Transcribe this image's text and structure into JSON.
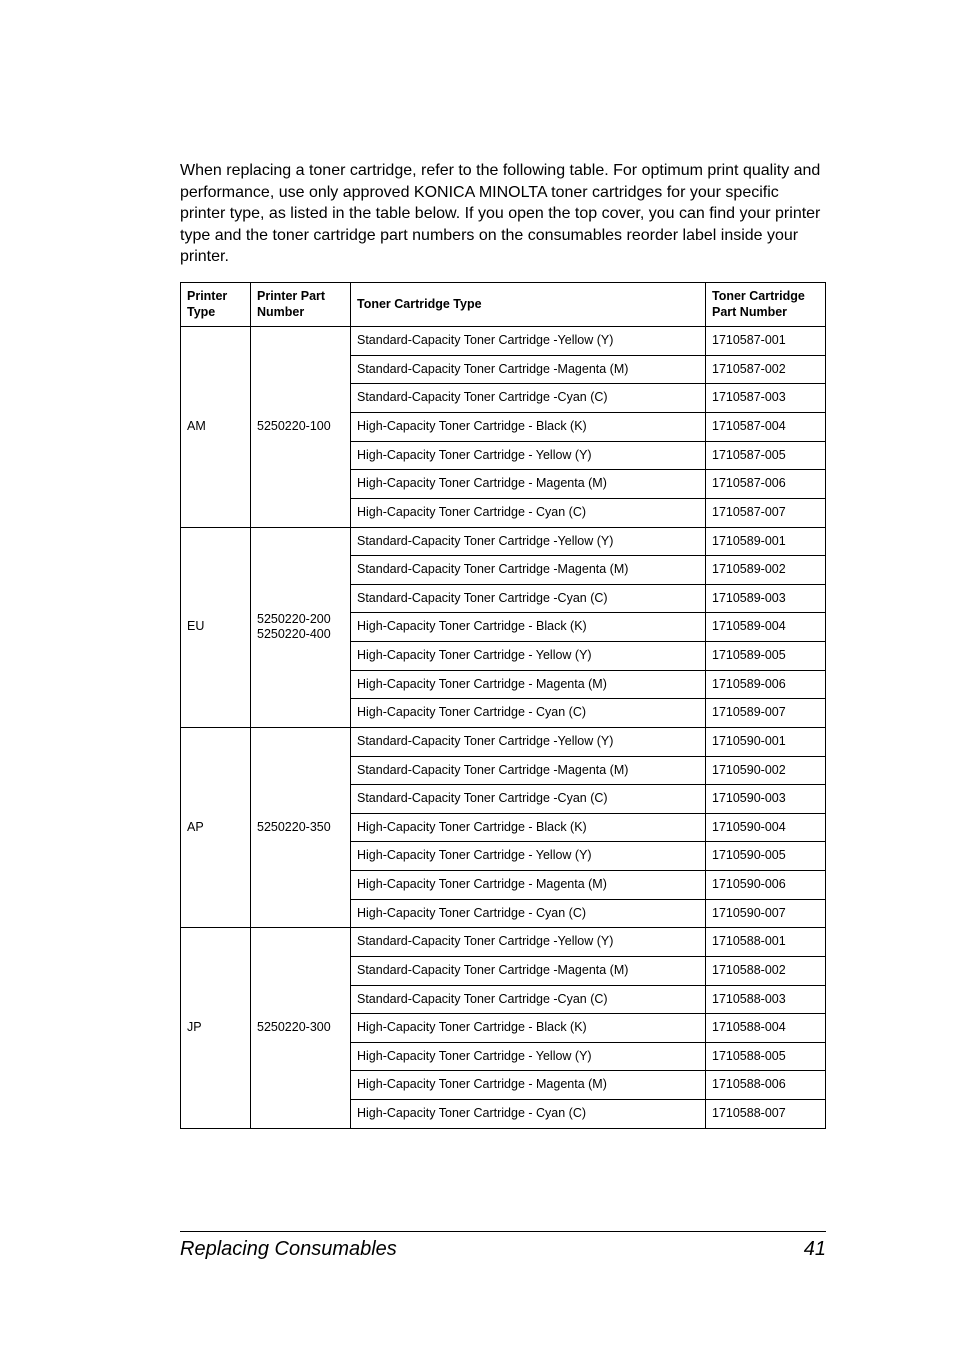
{
  "intro": "When replacing a toner cartridge, refer to the following table. For optimum print quality and performance, use only approved KONICA MINOLTA toner cartridges for your specific printer type, as listed in the table below. If you open the top cover, you can find your printer type and the toner cartridge part numbers on the consumables reorder label inside your printer.",
  "columns": {
    "printer_type": "Printer Type",
    "printer_part": "Printer Part Number",
    "cartridge_type": "Toner Cartridge Type",
    "cartridge_number": "Toner Cartridge Part Number"
  },
  "groups": [
    {
      "printer_type": "AM",
      "printer_part": "5250220-100",
      "rows": [
        {
          "ctype": "Standard-Capacity Toner Cartridge -Yellow (Y)",
          "cnum": "1710587-001"
        },
        {
          "ctype": "Standard-Capacity Toner Cartridge -Magenta (M)",
          "cnum": "1710587-002"
        },
        {
          "ctype": "Standard-Capacity Toner Cartridge -Cyan (C)",
          "cnum": "1710587-003"
        },
        {
          "ctype": "High-Capacity Toner Cartridge - Black (K)",
          "cnum": "1710587-004"
        },
        {
          "ctype": "High-Capacity Toner Cartridge - Yellow (Y)",
          "cnum": "1710587-005"
        },
        {
          "ctype": "High-Capacity Toner Cartridge - Magenta (M)",
          "cnum": "1710587-006"
        },
        {
          "ctype": "High-Capacity Toner Cartridge - Cyan (C)",
          "cnum": "1710587-007"
        }
      ]
    },
    {
      "printer_type": "EU",
      "printer_part": "5250220-200\n5250220-400",
      "rows": [
        {
          "ctype": "Standard-Capacity Toner Cartridge -Yellow (Y)",
          "cnum": "1710589-001"
        },
        {
          "ctype": "Standard-Capacity Toner Cartridge -Magenta (M)",
          "cnum": "1710589-002"
        },
        {
          "ctype": "Standard-Capacity Toner Cartridge -Cyan (C)",
          "cnum": "1710589-003"
        },
        {
          "ctype": "High-Capacity Toner Cartridge - Black (K)",
          "cnum": "1710589-004"
        },
        {
          "ctype": "High-Capacity Toner Cartridge - Yellow (Y)",
          "cnum": "1710589-005"
        },
        {
          "ctype": "High-Capacity Toner Cartridge - Magenta (M)",
          "cnum": "1710589-006"
        },
        {
          "ctype": "High-Capacity Toner Cartridge - Cyan (C)",
          "cnum": "1710589-007"
        }
      ]
    },
    {
      "printer_type": "AP",
      "printer_part": "5250220-350",
      "rows": [
        {
          "ctype": "Standard-Capacity Toner Cartridge -Yellow (Y)",
          "cnum": "1710590-001"
        },
        {
          "ctype": "Standard-Capacity Toner Cartridge -Magenta (M)",
          "cnum": "1710590-002"
        },
        {
          "ctype": "Standard-Capacity Toner Cartridge -Cyan (C)",
          "cnum": "1710590-003"
        },
        {
          "ctype": "High-Capacity Toner Cartridge - Black (K)",
          "cnum": "1710590-004"
        },
        {
          "ctype": "High-Capacity Toner Cartridge - Yellow (Y)",
          "cnum": "1710590-005"
        },
        {
          "ctype": "High-Capacity Toner Cartridge - Magenta (M)",
          "cnum": "1710590-006"
        },
        {
          "ctype": "High-Capacity Toner Cartridge - Cyan (C)",
          "cnum": "1710590-007"
        }
      ]
    },
    {
      "printer_type": "JP",
      "printer_part": "5250220-300",
      "rows": [
        {
          "ctype": "Standard-Capacity Toner Cartridge -Yellow (Y)",
          "cnum": "1710588-001"
        },
        {
          "ctype": "Standard-Capacity Toner Cartridge -Magenta (M)",
          "cnum": "1710588-002"
        },
        {
          "ctype": "Standard-Capacity Toner Cartridge -Cyan (C)",
          "cnum": "1710588-003"
        },
        {
          "ctype": "High-Capacity Toner Cartridge - Black (K)",
          "cnum": "1710588-004"
        },
        {
          "ctype": "High-Capacity Toner Cartridge - Yellow (Y)",
          "cnum": "1710588-005"
        },
        {
          "ctype": "High-Capacity Toner Cartridge - Magenta (M)",
          "cnum": "1710588-006"
        },
        {
          "ctype": "High-Capacity Toner Cartridge - Cyan (C)",
          "cnum": "1710588-007"
        }
      ]
    }
  ],
  "footer": {
    "title": "Replacing Consumables",
    "page": "41"
  }
}
